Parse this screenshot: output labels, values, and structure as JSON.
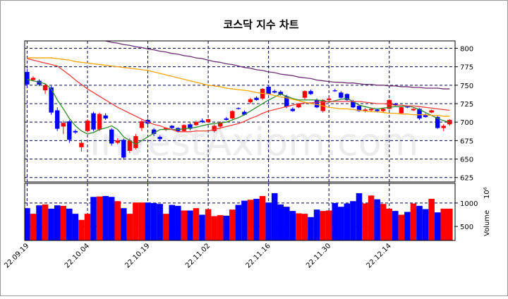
{
  "chart_data": {
    "type": "candlestick",
    "title": "코스닥 지수 차트",
    "watermark": "InvestAxiom.com",
    "categories": [
      "22.09.19",
      null,
      null,
      null,
      null,
      null,
      null,
      null,
      null,
      null,
      "22.10.04",
      null,
      null,
      null,
      null,
      null,
      null,
      null,
      null,
      null,
      "22.10.19",
      null,
      null,
      null,
      null,
      null,
      null,
      null,
      null,
      null,
      "22.11.02",
      null,
      null,
      null,
      null,
      null,
      null,
      null,
      null,
      null,
      "22.11.16",
      null,
      null,
      null,
      null,
      null,
      null,
      null,
      null,
      null,
      "22.11.30",
      null,
      null,
      null,
      null,
      null,
      null,
      null,
      null,
      null,
      "22.12.14",
      null,
      null,
      null,
      null,
      null,
      null,
      null,
      null,
      null,
      null
    ],
    "open": [
      768,
      757,
      756,
      743,
      747,
      716,
      694,
      701,
      688,
      666,
      688,
      712,
      690,
      709,
      690,
      672,
      676,
      661,
      665,
      692,
      703,
      690,
      680,
      690,
      695,
      692,
      688,
      697,
      696,
      702,
      700,
      688,
      694,
      705,
      705,
      719,
      714,
      727,
      733,
      732,
      748,
      742,
      741,
      735,
      718,
      720,
      733,
      742,
      730,
      715,
      730,
      743,
      740,
      738,
      728,
      722,
      715,
      716,
      717,
      715,
      718,
      725,
      712,
      721,
      716,
      718,
      710,
      713,
      707,
      692,
      697
    ],
    "high": [
      772,
      762,
      758,
      752,
      749,
      720,
      702,
      703,
      690,
      676,
      704,
      714,
      713,
      712,
      692,
      678,
      678,
      678,
      684,
      704,
      705,
      692,
      682,
      693,
      696,
      693,
      697,
      699,
      702,
      705,
      705,
      697,
      701,
      707,
      716,
      720,
      716,
      733,
      735,
      746,
      749,
      744,
      743,
      737,
      720,
      726,
      743,
      744,
      732,
      731,
      734,
      745,
      742,
      739,
      730,
      724,
      719,
      719,
      718,
      719,
      731,
      726,
      721,
      722,
      719,
      719,
      712,
      717,
      709,
      697,
      704
    ],
    "low": [
      746,
      755,
      749,
      738,
      710,
      688,
      684,
      672,
      684,
      660,
      686,
      688,
      688,
      703,
      668,
      670,
      649,
      658,
      663,
      688,
      695,
      681,
      674,
      688,
      690,
      686,
      687,
      689,
      695,
      699,
      699,
      686,
      692,
      702,
      704,
      717,
      709,
      725,
      729,
      730,
      737,
      739,
      736,
      719,
      714,
      719,
      731,
      737,
      719,
      713,
      728,
      741,
      732,
      729,
      719,
      714,
      713,
      714,
      713,
      713,
      717,
      722,
      711,
      719,
      715,
      703,
      706,
      712,
      691,
      688,
      695
    ],
    "close": [
      751,
      760,
      751,
      750,
      713,
      691,
      699,
      676,
      686,
      672,
      702,
      690,
      711,
      705,
      671,
      675,
      652,
      675,
      681,
      701,
      698,
      684,
      677,
      692,
      692,
      688,
      696,
      691,
      700,
      700,
      704,
      695,
      699,
      703,
      715,
      718,
      710,
      731,
      730,
      745,
      738,
      740,
      737,
      721,
      715,
      725,
      742,
      738,
      720,
      730,
      732,
      742,
      733,
      730,
      720,
      715,
      717,
      718,
      715,
      718,
      730,
      723,
      720,
      720,
      718,
      705,
      707,
      716,
      692,
      695,
      703
    ],
    "volume": [
      890,
      770,
      950,
      970,
      880,
      950,
      940,
      880,
      770,
      640,
      770,
      1130,
      1140,
      1150,
      1130,
      1040,
      890,
      770,
      1010,
      1010,
      1010,
      1000,
      980,
      770,
      960,
      940,
      840,
      840,
      890,
      750,
      870,
      720,
      740,
      730,
      860,
      960,
      1050,
      1070,
      1090,
      1150,
      1010,
      1210,
      970,
      920,
      830,
      780,
      770,
      700,
      860,
      830,
      840,
      1000,
      920,
      990,
      1040,
      1210,
      990,
      1160,
      1080,
      980,
      880,
      830,
      750,
      810,
      990,
      940,
      870,
      1090,
      800,
      880,
      880
    ],
    "up_color": "#ff0000",
    "down_color": "#0000ff",
    "moving_averages": [
      {
        "color": "#2e8b2e",
        "values": [
          758,
          756,
          754,
          752,
          745,
          730,
          718,
          705,
          695,
          688,
          684,
          686,
          690,
          692,
          695,
          690,
          680,
          675,
          670,
          675,
          680,
          685,
          690,
          690,
          690,
          690,
          691,
          692,
          693,
          695,
          697,
          698,
          699,
          700,
          703,
          706,
          710,
          715,
          720,
          725,
          730,
          734,
          738,
          735,
          732,
          730,
          730,
          730,
          730,
          729,
          727,
          729,
          731,
          732,
          728,
          723,
          721,
          719,
          718,
          719,
          720,
          721,
          721,
          722,
          720,
          717,
          713,
          709,
          705,
          702,
          700
        ]
      },
      {
        "color": "#f03c3c",
        "values": [
          786,
          784,
          782,
          780,
          778,
          776,
          770,
          764,
          757,
          751,
          745,
          740,
          735,
          730,
          725,
          720,
          716,
          712,
          708,
          704,
          700,
          697,
          695,
          692,
          690,
          687,
          687,
          687,
          688,
          688,
          688,
          690,
          692,
          694,
          696,
          698,
          701,
          705,
          708,
          712,
          715,
          717,
          719,
          721,
          723,
          725,
          726,
          726,
          727,
          727,
          728,
          728,
          728,
          728,
          728,
          728,
          727,
          726,
          725,
          725,
          724,
          723,
          723,
          722,
          722,
          721,
          720,
          719,
          718,
          717,
          716
        ]
      },
      {
        "color": "#ffa500",
        "values": [
          787,
          787,
          787,
          787,
          787,
          786,
          785,
          784,
          782,
          781,
          780,
          779,
          778,
          777,
          776,
          775,
          774,
          773,
          772,
          771,
          770,
          768,
          766,
          764,
          762,
          760,
          758,
          756,
          754,
          752,
          750,
          749,
          748,
          746,
          745,
          744,
          743,
          742,
          740,
          739,
          738,
          736,
          734,
          733,
          731,
          729,
          727,
          725,
          724,
          722,
          720,
          719,
          718,
          718,
          717,
          716,
          715,
          714,
          714,
          713,
          712,
          712,
          711,
          711,
          710,
          710,
          710,
          709,
          709,
          708,
          708
        ]
      },
      {
        "color": "#6a2c70",
        "values": [
          822,
          821,
          820,
          819,
          818,
          817,
          816,
          816,
          815,
          814,
          813,
          812,
          811,
          810,
          808,
          807,
          805,
          804,
          802,
          801,
          799,
          798,
          796,
          795,
          793,
          792,
          790,
          789,
          787,
          786,
          784,
          782,
          781,
          779,
          778,
          776,
          774,
          773,
          771,
          770,
          768,
          767,
          765,
          764,
          763,
          761,
          760,
          759,
          757,
          756,
          755,
          754,
          754,
          753,
          753,
          752,
          751,
          751,
          750,
          750,
          749,
          749,
          748,
          748,
          747,
          747,
          746,
          746,
          746,
          745,
          745
        ]
      }
    ],
    "price_ylim": [
      619,
      810
    ],
    "price_yticks": [
      625,
      650,
      675,
      700,
      725,
      750,
      775,
      800
    ],
    "volume_ylim": [
      200,
      1420
    ],
    "volume_yticks": [
      500,
      1000
    ],
    "volume_label": "Volume",
    "volume_scale_label": "10⁶",
    "grid": true
  }
}
